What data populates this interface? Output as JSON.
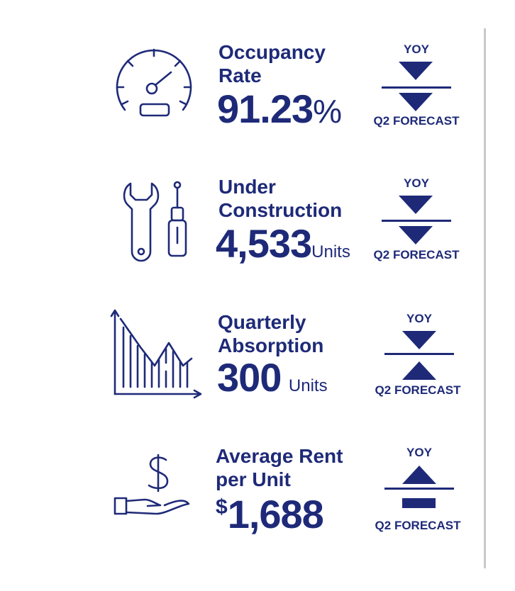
{
  "brand_color": "#1e2a78",
  "metrics": [
    {
      "icon": "speedometer-icon",
      "label_line1": "Occupancy",
      "label_line2": "Rate",
      "value": "91.23",
      "suffix": "%",
      "yoy_label": "YOY",
      "yoy_trend": "down",
      "forecast_label": "Q2 FORECAST",
      "forecast_trend": "down"
    },
    {
      "icon": "tools-icon",
      "label_line1": "Under",
      "label_line2": "Construction",
      "value": "4,533",
      "suffix": "Units",
      "yoy_label": "YOY",
      "yoy_trend": "down",
      "forecast_label": "Q2 FORECAST",
      "forecast_trend": "down"
    },
    {
      "icon": "declining-chart-icon",
      "label_line1": "Quarterly",
      "label_line2": "Absorption",
      "value": "300",
      "suffix": "Units",
      "yoy_label": "YOY",
      "yoy_trend": "down",
      "forecast_label": "Q2 FORECAST",
      "forecast_trend": "up"
    },
    {
      "icon": "hand-dollar-icon",
      "label_line1": "Average Rent",
      "label_line2": "per Unit",
      "prefix": "$",
      "value": "1,688",
      "yoy_label": "YOY",
      "yoy_trend": "up",
      "forecast_label": "Q2 FORECAST",
      "forecast_trend": "flat"
    }
  ]
}
